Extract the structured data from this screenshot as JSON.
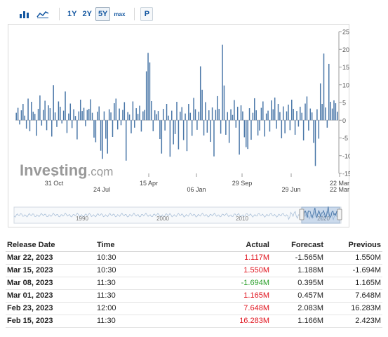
{
  "toolbar": {
    "bar_icon": "bar-chart-icon",
    "line_icon": "line-chart-icon",
    "ranges": [
      "1Y",
      "2Y",
      "5Y",
      "max"
    ],
    "active_range": "5Y",
    "p_label": "P"
  },
  "chart_data": {
    "type": "bar",
    "ylim": [
      -15,
      25
    ],
    "yticks": [
      25,
      20,
      15,
      10,
      5,
      0,
      -5,
      -10,
      -15
    ],
    "x_tick_labels_row1": [
      "31 Oct",
      "15 Apr",
      "29 Sep",
      "22 Mar"
    ],
    "x_tick_labels_row2": [
      "24 Jul",
      "06 Jan",
      "29 Jun",
      "22 Mar"
    ],
    "navigator_labels": [
      "1990",
      "2000",
      "2010",
      "2020"
    ],
    "watermark": "Investing.com",
    "bar_color": "#4a77a8",
    "values": [
      2.1,
      3.5,
      -1.2,
      2.8,
      4.6,
      1.3,
      -2.4,
      6.1,
      -3.1,
      5.2,
      2.4,
      1.8,
      -4.4,
      3.2,
      7.0,
      -1.5,
      2.9,
      5.5,
      -2.8,
      4.2,
      3.4,
      -4.6,
      9.9,
      2.2,
      -1.9,
      5.3,
      3.8,
      -0.9,
      2.7,
      8.1,
      -3.6,
      1.9,
      4.7,
      -2.2,
      3.1,
      1.2,
      -5.4,
      2.5,
      5.8,
      2.6,
      3.5,
      -1.7,
      2.9,
      3.2,
      5.9,
      2.1,
      -4.9,
      -6.2,
      2.4,
      3.9,
      -8.6,
      -10.9,
      2.5,
      -5.2,
      -9.4,
      3.1,
      2.2,
      -4.7,
      4.8,
      6.1,
      -2.6,
      3.3,
      -1.4,
      2.9,
      5.1,
      -11.4,
      2.3,
      1.6,
      -3.7,
      5.3,
      -2.1,
      3.4,
      1.8,
      4.1,
      -3.2,
      2.5,
      2.9,
      13.8,
      19.0,
      16.3,
      5.4,
      -3.1,
      2.8,
      1.7,
      2.6,
      -5.3,
      -9.4,
      3.2,
      -2.9,
      4.6,
      1.3,
      -10.3,
      2.7,
      -6.8,
      -3.9,
      5.2,
      -8.2,
      2.4,
      3.7,
      -5.6,
      1.9,
      -8.7,
      4.6,
      2.1,
      -4.4,
      6.3,
      3.1,
      -2.7,
      2.4,
      15.2,
      8.6,
      -4.3,
      5.1,
      -3.5,
      2.8,
      -6.1,
      3.6,
      -10.2,
      2.9,
      6.8,
      3.2,
      -3.8,
      21.3,
      9.8,
      -4.1,
      2.3,
      -6.4,
      3.1,
      1.5,
      5.7,
      -2.1,
      3.8,
      -9.7,
      4.2,
      2.5,
      -4.8,
      -7.6,
      -8.1,
      3.4,
      -5.5,
      2.1,
      6.2,
      2.8,
      -4.3,
      -2.9,
      3.5,
      5.3,
      -4.6,
      1.9,
      2.7,
      -3.2,
      5.6,
      3.1,
      6.4,
      -2.4,
      4.6,
      2.3,
      -5.1,
      3.9,
      -3.7,
      2.5,
      4.4,
      -2.8,
      5.8,
      3.2,
      -4.1,
      2.6,
      -1.8,
      3.8,
      2.1,
      -5.7,
      4.7,
      6.7,
      -2.9,
      3.3,
      2.2,
      -6.4,
      -12.9,
      3.1,
      -5.2,
      10.4,
      4.6,
      18.8,
      3.6,
      -2.1,
      15.9,
      5.2,
      3.3,
      5.6,
      4.8,
      2.4
    ]
  },
  "table": {
    "headers": [
      "Release Date",
      "Time",
      "Actual",
      "Forecast",
      "Previous"
    ],
    "rows": [
      {
        "date": "Mar 22, 2023",
        "time": "10:30",
        "actual": "1.117M",
        "forecast": "-1.565M",
        "previous": "1.550M",
        "actual_color": "#e0141e"
      },
      {
        "date": "Mar 15, 2023",
        "time": "10:30",
        "actual": "1.550M",
        "forecast": "1.188M",
        "previous": "-1.694M",
        "actual_color": "#e0141e"
      },
      {
        "date": "Mar 08, 2023",
        "time": "11:30",
        "actual": "-1.694M",
        "forecast": "0.395M",
        "previous": "1.165M",
        "actual_color": "#2ca02c"
      },
      {
        "date": "Mar 01, 2023",
        "time": "11:30",
        "actual": "1.165M",
        "forecast": "0.457M",
        "previous": "7.648M",
        "actual_color": "#e0141e"
      },
      {
        "date": "Feb 23, 2023",
        "time": "12:00",
        "actual": "7.648M",
        "forecast": "2.083M",
        "previous": "16.283M",
        "actual_color": "#e0141e"
      },
      {
        "date": "Feb 15, 2023",
        "time": "11:30",
        "actual": "16.283M",
        "forecast": "1.166M",
        "previous": "2.423M",
        "actual_color": "#e0141e"
      }
    ]
  }
}
